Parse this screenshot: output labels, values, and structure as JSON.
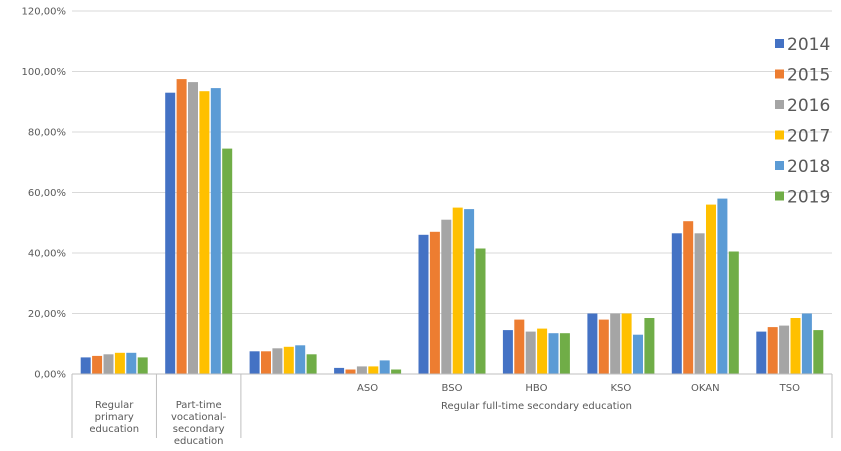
{
  "chart_data": {
    "type": "bar",
    "categories": [
      {
        "lines": [
          "Regular",
          "primary",
          "education"
        ]
      },
      {
        "lines": [
          "Part-time",
          "vocational-",
          "secondary",
          "education"
        ]
      },
      {
        "lines": []
      },
      {
        "lines": [
          "ASO"
        ]
      },
      {
        "lines": [
          "BSO"
        ]
      },
      {
        "lines": [
          "HBO"
        ]
      },
      {
        "lines": [
          "KSO"
        ]
      },
      {
        "lines": [
          "OKAN"
        ]
      },
      {
        "lines": [
          "TSO"
        ]
      }
    ],
    "group_label": "Regular full-time secondary education",
    "series": [
      {
        "name": "2014",
        "color": "#4472C4",
        "values": [
          5.5,
          93.0,
          7.5,
          2.0,
          46.0,
          14.5,
          20.0,
          46.5,
          14.0
        ]
      },
      {
        "name": "2015",
        "color": "#ED7D31",
        "values": [
          6.0,
          97.5,
          7.5,
          1.5,
          47.0,
          18.0,
          18.0,
          50.5,
          15.5
        ]
      },
      {
        "name": "2016",
        "color": "#A5A5A5",
        "values": [
          6.5,
          96.5,
          8.5,
          2.5,
          51.0,
          14.0,
          20.0,
          46.5,
          16.0
        ]
      },
      {
        "name": "2017",
        "color": "#FFC000",
        "values": [
          7.0,
          93.5,
          9.0,
          2.5,
          55.0,
          15.0,
          20.0,
          56.0,
          18.5
        ]
      },
      {
        "name": "2018",
        "color": "#5B9BD5",
        "values": [
          7.0,
          94.5,
          9.5,
          4.5,
          54.5,
          13.5,
          13.0,
          58.0,
          20.0
        ]
      },
      {
        "name": "2019",
        "color": "#70AD47",
        "values": [
          5.5,
          74.5,
          6.5,
          1.5,
          41.5,
          13.5,
          18.5,
          40.5,
          14.5
        ]
      }
    ],
    "ylim": [
      0,
      120
    ],
    "yticks": [
      "0,00%",
      "20,00%",
      "40,00%",
      "60,00%",
      "80,00%",
      "100,00%",
      "120,00%"
    ],
    "grid": true,
    "legend_position": "right"
  }
}
